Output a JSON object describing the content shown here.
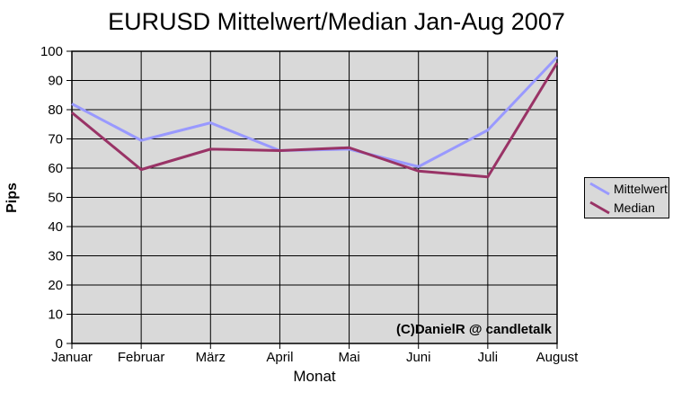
{
  "chart_data": {
    "type": "line",
    "title": "EURUSD Mittelwert/Median Jan-Aug 2007",
    "xlabel": "Monat",
    "ylabel": "Pips",
    "categories": [
      "Januar",
      "Februar",
      "März",
      "April",
      "Mai",
      "Juni",
      "Juli",
      "August"
    ],
    "series": [
      {
        "name": "Mittelwert",
        "color": "#9999ff",
        "values": [
          82,
          69.5,
          75.5,
          66,
          66.5,
          60.5,
          73,
          98
        ]
      },
      {
        "name": "Median",
        "color": "#993366",
        "values": [
          79,
          59.5,
          66.5,
          66,
          67,
          59,
          57,
          96
        ]
      }
    ],
    "ylim": [
      0,
      100
    ],
    "yticks": [
      0,
      10,
      20,
      30,
      40,
      50,
      60,
      70,
      80,
      90,
      100
    ],
    "grid": "on",
    "legend_position": "right",
    "annotation": "(C)DanielR @ candletalk",
    "colors": {
      "plot_bg": "#d9d9d9",
      "grid": "#000000",
      "axis": "#000000",
      "page_bg": "#ffffff",
      "text": "#000000"
    }
  }
}
